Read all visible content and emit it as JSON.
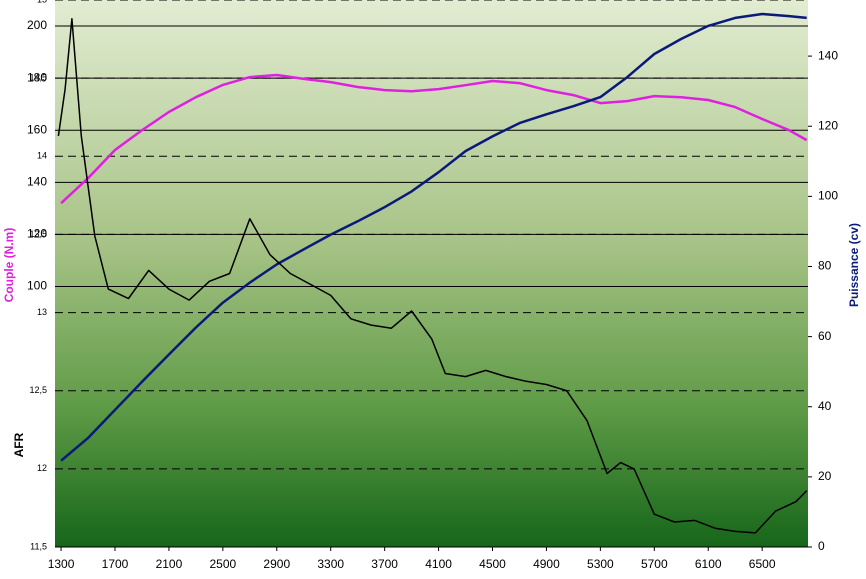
{
  "chart_data": {
    "type": "line",
    "y_label": "Couple (N.m)",
    "y2_label": "Puissance (cv)",
    "y3_label": "AFR",
    "xlim": [
      1255,
      6840
    ],
    "xticks": [
      1300,
      1700,
      2100,
      2500,
      2900,
      3300,
      3700,
      4100,
      4500,
      4900,
      5300,
      5700,
      6100,
      6500
    ],
    "ylim": [
      0,
      210
    ],
    "yticks": [
      100,
      120,
      140,
      160,
      180,
      200
    ],
    "y2lim": [
      0,
      156
    ],
    "y2ticks": [
      0,
      20,
      40,
      60,
      80,
      100,
      120,
      140
    ],
    "y3lim": [
      11.5,
      15
    ],
    "y3ticks": [
      {
        "value": 11.5,
        "label": "11,5"
      },
      12,
      {
        "value": 12.5,
        "label": "12,5"
      },
      13,
      {
        "value": 13.5,
        "label": "13,5"
      },
      14,
      {
        "value": 14.5,
        "label": "14,5"
      },
      15
    ],
    "grid": true,
    "series": [
      {
        "name": "Couple (N.m)",
        "color": "#e020e0",
        "axis": "y",
        "x": [
          1300,
          1500,
          1700,
          1900,
          2100,
          2300,
          2500,
          2700,
          2900,
          3100,
          3300,
          3500,
          3700,
          3900,
          4100,
          4300,
          4500,
          4700,
          4900,
          5100,
          5300,
          5500,
          5700,
          5900,
          6100,
          6300,
          6500,
          6700,
          6830
        ],
        "values": [
          132,
          141.6,
          152.4,
          160,
          167,
          172.7,
          177.4,
          180.4,
          181.2,
          179.7,
          178.5,
          176.6,
          175.4,
          175,
          175.8,
          177.3,
          178.9,
          178.1,
          175.4,
          173.5,
          170.4,
          171.2,
          173.1,
          172.7,
          171.6,
          168.9,
          164.3,
          160,
          156.2
        ]
      },
      {
        "name": "Puissance (cv)",
        "color": "#0a1a7a",
        "axis": "y2",
        "x": [
          1300,
          1500,
          1700,
          1900,
          2100,
          2300,
          2500,
          2700,
          2900,
          3100,
          3300,
          3500,
          3700,
          3900,
          4100,
          4300,
          4500,
          4700,
          4900,
          5100,
          5300,
          5500,
          5700,
          5900,
          6100,
          6300,
          6500,
          6700,
          6830
        ],
        "values": [
          24.6,
          31.1,
          39.1,
          47.1,
          54.9,
          62.6,
          69.7,
          75.4,
          80.6,
          84.9,
          89.1,
          92.9,
          96.9,
          101.4,
          106.9,
          112.9,
          117.1,
          120.9,
          123.4,
          125.7,
          128.3,
          134,
          140.6,
          144.9,
          148.6,
          150.9,
          152,
          151.4,
          150.9
        ]
      },
      {
        "name": "AFR",
        "color": "#000000",
        "axis": "y3",
        "x": [
          1280,
          1330,
          1380,
          1450,
          1550,
          1650,
          1800,
          1950,
          2100,
          2250,
          2400,
          2550,
          2700,
          2850,
          3000,
          3150,
          3300,
          3450,
          3600,
          3750,
          3900,
          4050,
          4150,
          4300,
          4450,
          4600,
          4750,
          4900,
          5050,
          5200,
          5350,
          5450,
          5550,
          5700,
          5850,
          6000,
          6150,
          6300,
          6450,
          6600,
          6750,
          6830
        ],
        "values": [
          14.13,
          14.43,
          14.88,
          14.13,
          13.49,
          13.15,
          13.09,
          13.27,
          13.15,
          13.08,
          13.2,
          13.25,
          13.6,
          13.37,
          13.25,
          13.18,
          13.11,
          12.96,
          12.92,
          12.9,
          13.01,
          12.83,
          12.61,
          12.59,
          12.63,
          12.59,
          12.56,
          12.54,
          12.5,
          12.31,
          11.97,
          12.04,
          12,
          11.71,
          11.66,
          11.67,
          11.62,
          11.6,
          11.59,
          11.73,
          11.79,
          11.86
        ]
      }
    ]
  }
}
